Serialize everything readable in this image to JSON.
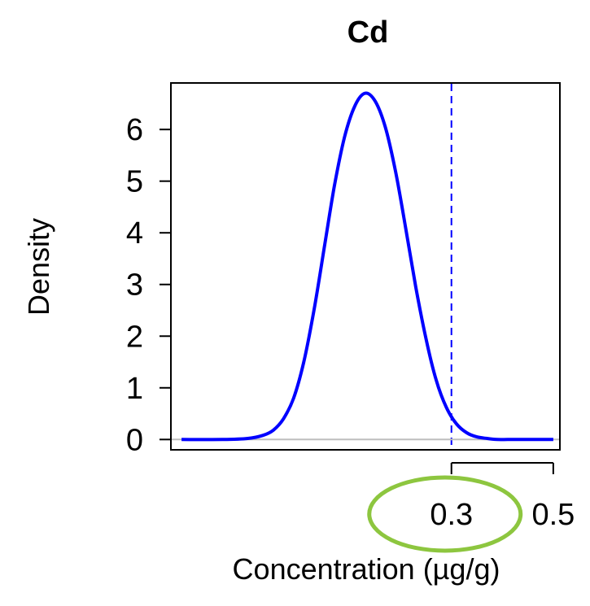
{
  "chart_data": {
    "type": "line",
    "title": "Cd",
    "xlabel": "Concentration (µg/g)",
    "ylabel": "Density",
    "xlim": [
      -0.251,
      0.513
    ],
    "ylim": [
      -0.2,
      6.9
    ],
    "x_ticks": [
      {
        "value": 0.3,
        "label": "0.3"
      },
      {
        "value": 0.5,
        "label": "0.5"
      }
    ],
    "y_ticks": [
      {
        "value": 0,
        "label": "0"
      },
      {
        "value": 1,
        "label": "1"
      },
      {
        "value": 2,
        "label": "2"
      },
      {
        "value": 3,
        "label": "3"
      },
      {
        "value": 4,
        "label": "4"
      },
      {
        "value": 5,
        "label": "5"
      },
      {
        "value": 6,
        "label": "6"
      }
    ],
    "series": [
      {
        "color": "#0000ff",
        "x": [
          -0.23,
          -0.15,
          -0.1,
          -0.07,
          -0.05,
          -0.03,
          -0.01,
          0.01,
          0.03,
          0.05,
          0.07,
          0.09,
          0.11,
          0.13,
          0.15,
          0.17,
          0.19,
          0.21,
          0.23,
          0.25,
          0.27,
          0.29,
          0.31,
          0.33,
          0.35,
          0.37,
          0.39,
          0.41,
          0.43,
          0.45,
          0.47,
          0.5
        ],
        "y": [
          0.0,
          0.0,
          0.02,
          0.08,
          0.18,
          0.4,
          0.8,
          1.5,
          2.5,
          3.7,
          4.9,
          5.85,
          6.45,
          6.7,
          6.55,
          6.05,
          5.2,
          4.1,
          2.95,
          1.95,
          1.15,
          0.62,
          0.3,
          0.13,
          0.05,
          0.02,
          0.0,
          0.0,
          0.0,
          0.0,
          0.0,
          0.0
        ]
      }
    ],
    "reference_lines": [
      {
        "orientation": "vertical",
        "x": 0.3,
        "color": "#0000ff",
        "style": "dashed"
      },
      {
        "orientation": "horizontal",
        "y": 0,
        "color": "#bebebe",
        "style": "solid"
      }
    ],
    "annotations": [
      {
        "type": "ellipse",
        "around": "0.3",
        "color": "#8dc63f"
      }
    ],
    "grid": false,
    "legend": "none"
  }
}
